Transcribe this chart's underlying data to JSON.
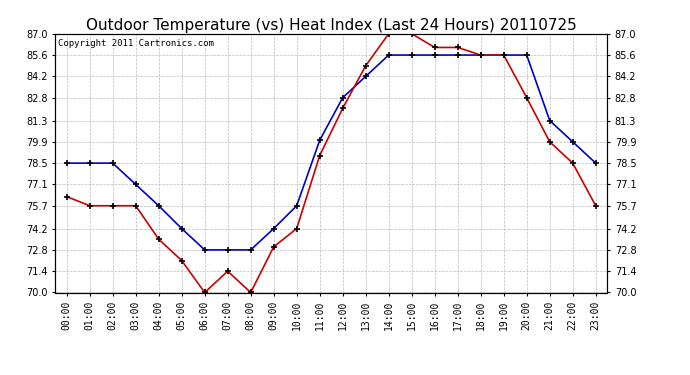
{
  "title": "Outdoor Temperature (vs) Heat Index (Last 24 Hours) 20110725",
  "copyright_text": "Copyright 2011 Cartronics.com",
  "x_labels": [
    "00:00",
    "01:00",
    "02:00",
    "03:00",
    "04:00",
    "05:00",
    "06:00",
    "07:00",
    "08:00",
    "09:00",
    "10:00",
    "11:00",
    "12:00",
    "13:00",
    "14:00",
    "15:00",
    "16:00",
    "17:00",
    "18:00",
    "19:00",
    "20:00",
    "21:00",
    "22:00",
    "23:00"
  ],
  "blue_line": [
    78.5,
    78.5,
    78.5,
    77.1,
    75.7,
    74.2,
    72.8,
    72.8,
    72.8,
    74.2,
    75.7,
    80.0,
    82.8,
    84.2,
    85.6,
    85.6,
    85.6,
    85.6,
    85.6,
    85.6,
    85.6,
    81.3,
    79.9,
    78.5
  ],
  "red_line": [
    76.3,
    75.7,
    75.7,
    75.7,
    73.5,
    72.1,
    70.0,
    71.4,
    70.0,
    73.0,
    74.2,
    79.0,
    82.1,
    84.9,
    87.0,
    87.0,
    86.1,
    86.1,
    85.6,
    85.6,
    82.8,
    79.9,
    78.5,
    75.7
  ],
  "blue_color": "#0000cc",
  "red_color": "#cc0000",
  "bg_color": "#ffffff",
  "grid_color": "#bbbbbb",
  "ylim_min": 70.0,
  "ylim_max": 87.0,
  "yticks": [
    70.0,
    71.4,
    72.8,
    74.2,
    75.7,
    77.1,
    78.5,
    79.9,
    81.3,
    82.8,
    84.2,
    85.6,
    87.0
  ],
  "title_fontsize": 11,
  "copyright_fontsize": 6.5,
  "tick_fontsize": 7,
  "marker": "+"
}
